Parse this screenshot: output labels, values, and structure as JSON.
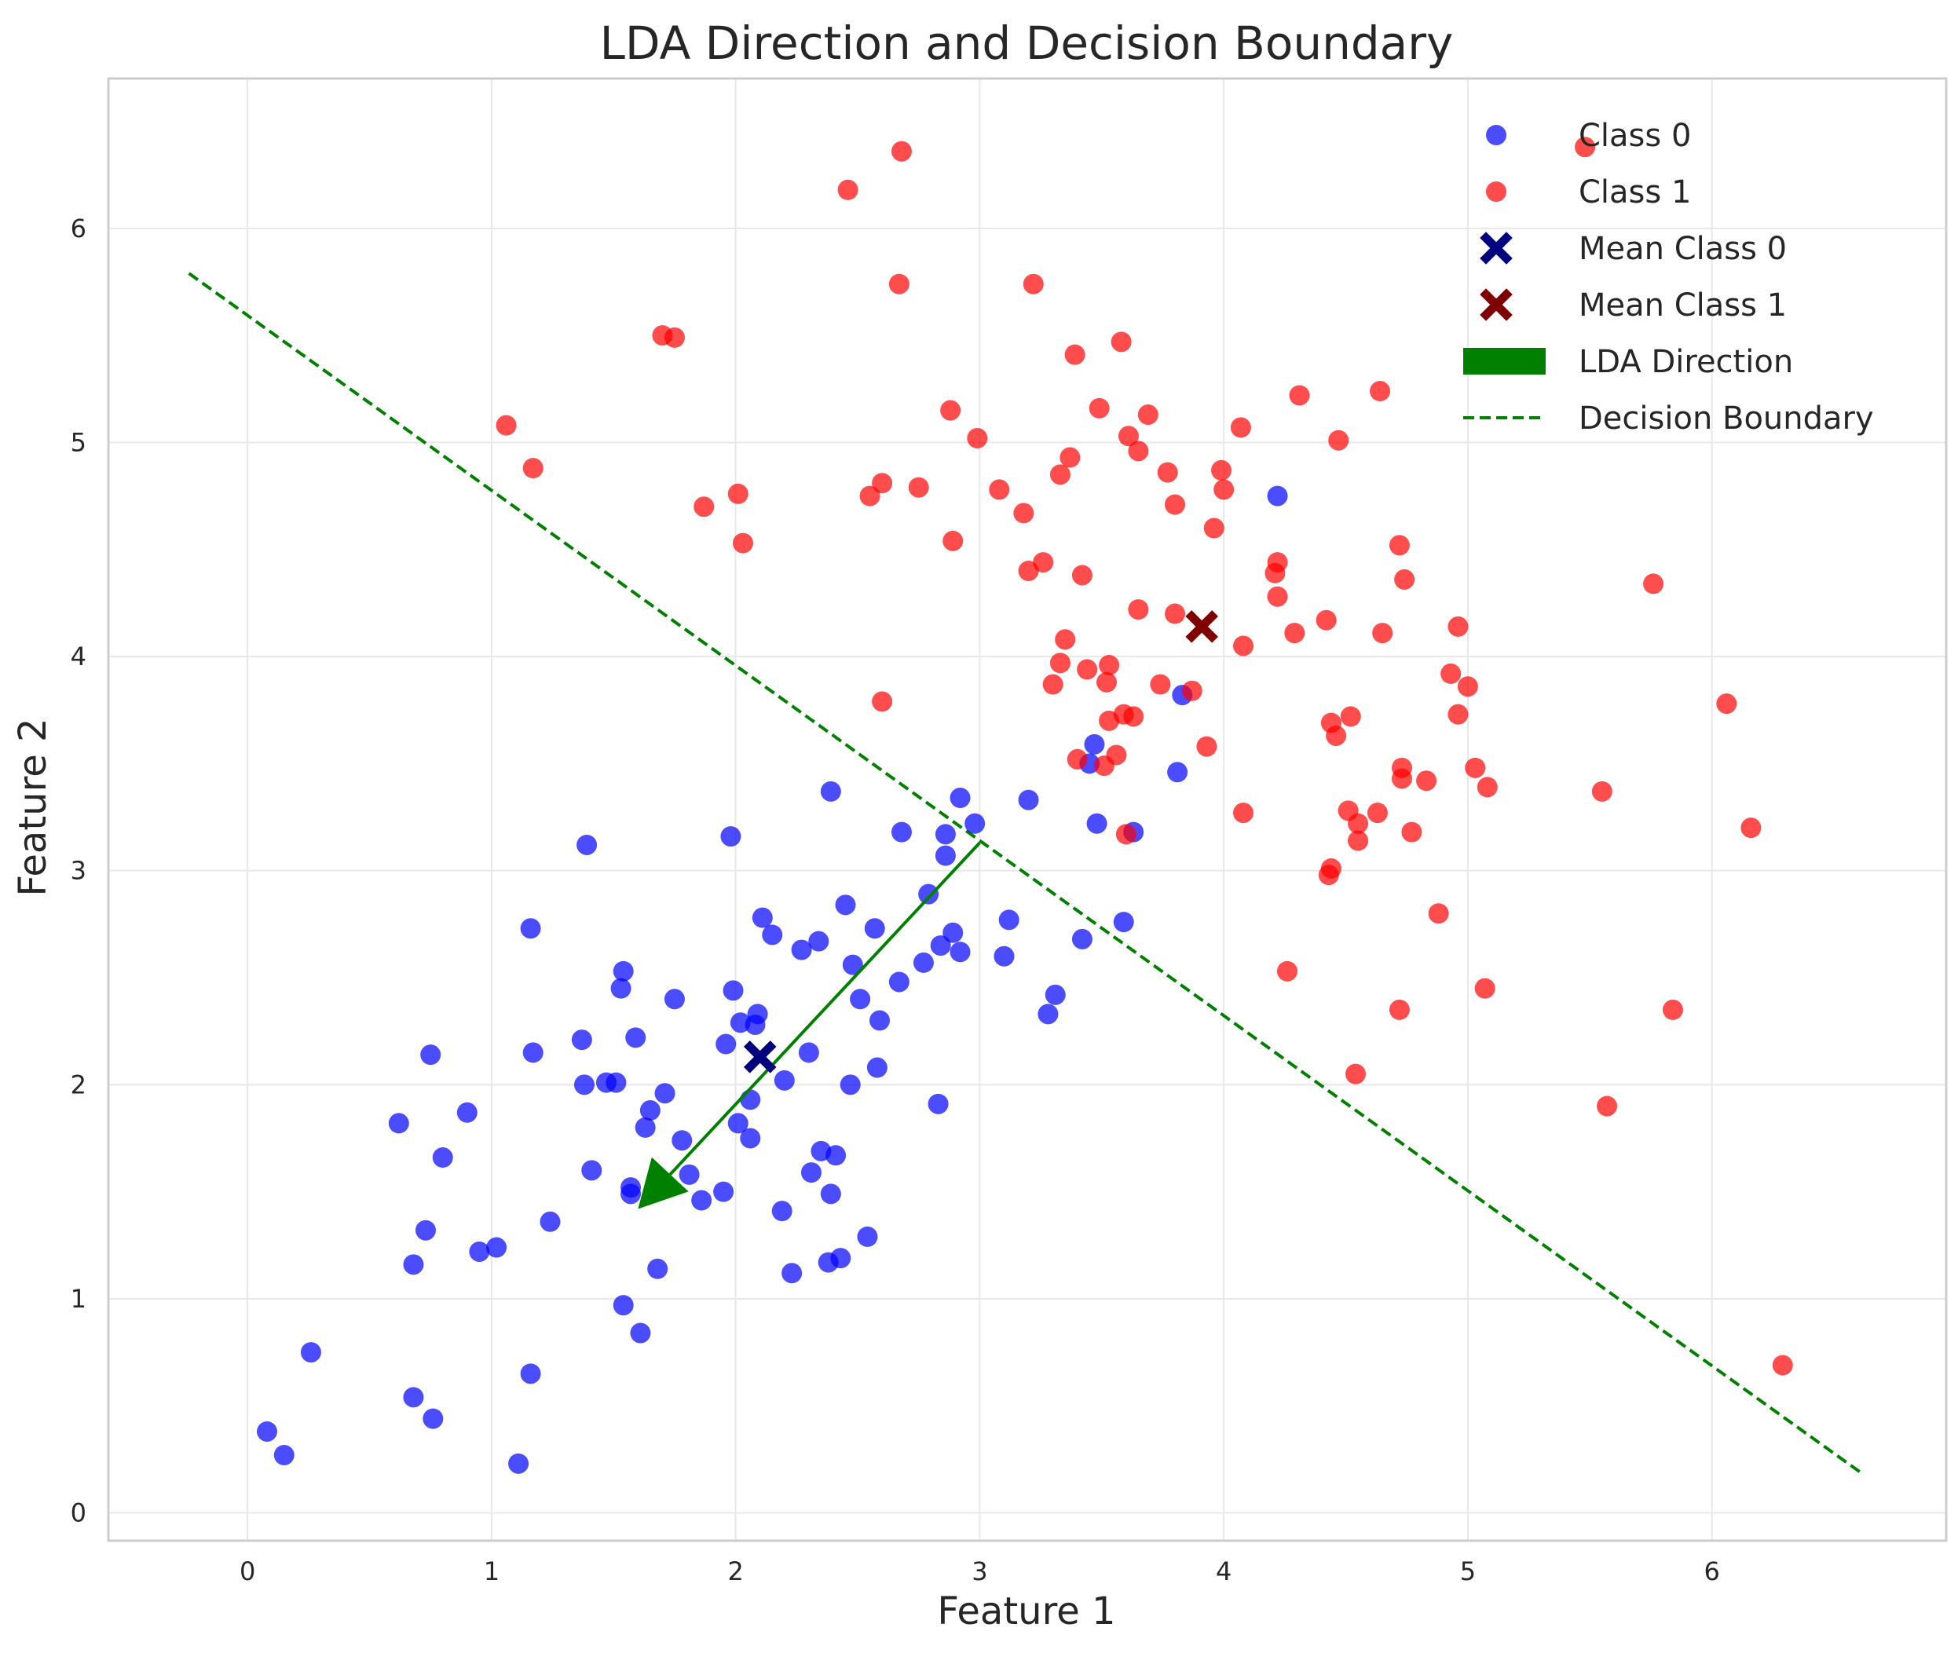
{
  "chart_data": {
    "type": "scatter",
    "title": "LDA Direction and Decision Boundary",
    "xlabel": "Feature 1",
    "ylabel": "Feature 2",
    "xlim": [
      -0.57,
      6.96
    ],
    "ylim": [
      -0.13,
      6.7
    ],
    "xticks": [
      "0",
      "1",
      "2",
      "3",
      "4",
      "5",
      "6"
    ],
    "yticks": [
      "0",
      "1",
      "2",
      "3",
      "4",
      "5",
      "6"
    ],
    "grid": true,
    "legend_position": "top-right",
    "colors": {
      "class0": "#0000ff",
      "class1": "#ff0000",
      "mean0": "#00007f",
      "mean1": "#7f0000",
      "lda": "#008000",
      "boundary": "#008000"
    },
    "series": [
      {
        "name": "Class 0",
        "kind": "scatter",
        "points": [
          [
            0.08,
            0.38
          ],
          [
            0.15,
            0.27
          ],
          [
            0.26,
            0.75
          ],
          [
            0.62,
            1.82
          ],
          [
            0.68,
            1.16
          ],
          [
            0.68,
            0.54
          ],
          [
            0.73,
            1.32
          ],
          [
            0.75,
            2.14
          ],
          [
            0.76,
            0.44
          ],
          [
            0.8,
            1.66
          ],
          [
            0.9,
            1.87
          ],
          [
            0.95,
            1.22
          ],
          [
            1.02,
            1.24
          ],
          [
            1.11,
            0.23
          ],
          [
            1.16,
            0.65
          ],
          [
            1.16,
            2.73
          ],
          [
            1.17,
            2.15
          ],
          [
            1.24,
            1.36
          ],
          [
            1.37,
            2.21
          ],
          [
            1.38,
            2.0
          ],
          [
            1.39,
            3.12
          ],
          [
            1.41,
            1.6
          ],
          [
            1.47,
            2.01
          ],
          [
            1.51,
            2.01
          ],
          [
            1.53,
            2.45
          ],
          [
            1.54,
            2.53
          ],
          [
            1.54,
            0.97
          ],
          [
            1.57,
            1.52
          ],
          [
            1.57,
            1.49
          ],
          [
            1.59,
            2.22
          ],
          [
            1.61,
            0.84
          ],
          [
            1.63,
            1.8
          ],
          [
            1.65,
            1.88
          ],
          [
            1.68,
            1.14
          ],
          [
            1.71,
            1.96
          ],
          [
            1.75,
            2.4
          ],
          [
            1.78,
            1.74
          ],
          [
            1.81,
            1.58
          ],
          [
            1.86,
            1.46
          ],
          [
            1.95,
            1.5
          ],
          [
            1.96,
            2.19
          ],
          [
            1.98,
            3.16
          ],
          [
            1.99,
            2.44
          ],
          [
            2.01,
            1.82
          ],
          [
            2.02,
            2.29
          ],
          [
            2.06,
            1.75
          ],
          [
            2.06,
            1.93
          ],
          [
            2.08,
            2.28
          ],
          [
            2.09,
            2.33
          ],
          [
            2.11,
            2.78
          ],
          [
            2.15,
            2.7
          ],
          [
            2.19,
            1.41
          ],
          [
            2.2,
            2.02
          ],
          [
            2.23,
            1.12
          ],
          [
            2.27,
            2.63
          ],
          [
            2.3,
            2.15
          ],
          [
            2.31,
            1.59
          ],
          [
            2.34,
            2.67
          ],
          [
            2.35,
            1.69
          ],
          [
            2.38,
            1.17
          ],
          [
            2.39,
            1.49
          ],
          [
            2.39,
            3.37
          ],
          [
            2.41,
            1.67
          ],
          [
            2.43,
            1.19
          ],
          [
            2.45,
            2.84
          ],
          [
            2.47,
            2.0
          ],
          [
            2.48,
            2.56
          ],
          [
            2.51,
            2.4
          ],
          [
            2.54,
            1.29
          ],
          [
            2.57,
            2.73
          ],
          [
            2.58,
            2.08
          ],
          [
            2.59,
            2.3
          ],
          [
            2.67,
            2.48
          ],
          [
            2.68,
            3.18
          ],
          [
            2.77,
            2.57
          ],
          [
            2.79,
            2.89
          ],
          [
            2.83,
            1.91
          ],
          [
            2.84,
            2.65
          ],
          [
            2.86,
            3.17
          ],
          [
            2.86,
            3.07
          ],
          [
            2.89,
            2.71
          ],
          [
            2.92,
            3.34
          ],
          [
            2.92,
            2.62
          ],
          [
            2.98,
            3.22
          ],
          [
            3.1,
            2.6
          ],
          [
            3.12,
            2.77
          ],
          [
            3.2,
            3.33
          ],
          [
            3.28,
            2.33
          ],
          [
            3.31,
            2.42
          ],
          [
            3.42,
            2.68
          ],
          [
            3.45,
            3.5
          ],
          [
            3.47,
            3.59
          ],
          [
            3.48,
            3.22
          ],
          [
            3.59,
            2.76
          ],
          [
            3.63,
            3.18
          ],
          [
            3.81,
            3.46
          ],
          [
            3.83,
            3.82
          ],
          [
            4.22,
            4.75
          ]
        ]
      },
      {
        "name": "Class 1",
        "kind": "scatter",
        "points": [
          [
            1.06,
            5.08
          ],
          [
            1.17,
            4.88
          ],
          [
            1.7,
            5.5
          ],
          [
            1.75,
            5.49
          ],
          [
            1.87,
            4.7
          ],
          [
            2.01,
            4.76
          ],
          [
            2.03,
            4.53
          ],
          [
            2.46,
            6.18
          ],
          [
            2.55,
            4.75
          ],
          [
            2.6,
            4.81
          ],
          [
            2.6,
            3.79
          ],
          [
            2.67,
            5.74
          ],
          [
            2.68,
            6.36
          ],
          [
            2.75,
            4.79
          ],
          [
            2.88,
            5.15
          ],
          [
            2.89,
            4.54
          ],
          [
            2.99,
            5.02
          ],
          [
            3.08,
            4.78
          ],
          [
            3.18,
            4.67
          ],
          [
            3.2,
            4.4
          ],
          [
            3.22,
            5.74
          ],
          [
            3.26,
            4.44
          ],
          [
            3.3,
            3.87
          ],
          [
            3.33,
            3.97
          ],
          [
            3.33,
            4.85
          ],
          [
            3.35,
            4.08
          ],
          [
            3.37,
            4.93
          ],
          [
            3.39,
            5.41
          ],
          [
            3.4,
            3.52
          ],
          [
            3.42,
            4.38
          ],
          [
            3.44,
            3.94
          ],
          [
            3.49,
            5.16
          ],
          [
            3.51,
            3.49
          ],
          [
            3.52,
            3.88
          ],
          [
            3.53,
            3.96
          ],
          [
            3.53,
            3.7
          ],
          [
            3.56,
            3.54
          ],
          [
            3.58,
            5.47
          ],
          [
            3.59,
            3.73
          ],
          [
            3.6,
            3.17
          ],
          [
            3.61,
            5.03
          ],
          [
            3.63,
            3.72
          ],
          [
            3.65,
            4.96
          ],
          [
            3.65,
            4.22
          ],
          [
            3.69,
            5.13
          ],
          [
            3.74,
            3.87
          ],
          [
            3.77,
            4.86
          ],
          [
            3.8,
            4.71
          ],
          [
            3.8,
            4.2
          ],
          [
            3.87,
            3.84
          ],
          [
            3.93,
            3.58
          ],
          [
            3.96,
            4.6
          ],
          [
            3.99,
            4.87
          ],
          [
            4.0,
            4.78
          ],
          [
            4.07,
            5.07
          ],
          [
            4.08,
            4.05
          ],
          [
            4.08,
            3.27
          ],
          [
            4.21,
            4.39
          ],
          [
            4.22,
            4.28
          ],
          [
            4.22,
            4.44
          ],
          [
            4.26,
            2.53
          ],
          [
            4.29,
            4.11
          ],
          [
            4.31,
            5.22
          ],
          [
            4.42,
            4.17
          ],
          [
            4.43,
            2.98
          ],
          [
            4.44,
            3.01
          ],
          [
            4.44,
            3.69
          ],
          [
            4.46,
            3.63
          ],
          [
            4.47,
            5.01
          ],
          [
            4.51,
            3.28
          ],
          [
            4.52,
            3.72
          ],
          [
            4.54,
            2.05
          ],
          [
            4.55,
            3.22
          ],
          [
            4.55,
            3.14
          ],
          [
            4.63,
            3.27
          ],
          [
            4.64,
            5.24
          ],
          [
            4.65,
            4.11
          ],
          [
            4.72,
            4.52
          ],
          [
            4.72,
            2.35
          ],
          [
            4.73,
            3.43
          ],
          [
            4.73,
            3.48
          ],
          [
            4.74,
            4.36
          ],
          [
            4.77,
            3.18
          ],
          [
            4.83,
            3.42
          ],
          [
            4.88,
            2.8
          ],
          [
            4.93,
            3.92
          ],
          [
            4.96,
            3.73
          ],
          [
            4.96,
            4.14
          ],
          [
            5.0,
            3.86
          ],
          [
            5.03,
            3.48
          ],
          [
            5.07,
            2.45
          ],
          [
            5.08,
            3.39
          ],
          [
            5.48,
            6.38
          ],
          [
            5.55,
            3.37
          ],
          [
            5.57,
            1.9
          ],
          [
            5.76,
            4.34
          ],
          [
            5.84,
            2.35
          ],
          [
            6.06,
            3.78
          ],
          [
            6.16,
            3.2
          ],
          [
            6.29,
            0.69
          ]
        ]
      },
      {
        "name": "Mean Class 0",
        "kind": "mean",
        "points": [
          [
            2.1,
            2.13
          ]
        ]
      },
      {
        "name": "Mean Class 1",
        "kind": "mean",
        "points": [
          [
            3.91,
            4.14
          ]
        ]
      },
      {
        "name": "LDA Direction",
        "kind": "arrow",
        "start": [
          3.0,
          3.13
        ],
        "end": [
          1.6,
          1.42
        ]
      },
      {
        "name": "Decision Boundary",
        "kind": "line",
        "start": [
          -0.24,
          5.79
        ],
        "end": [
          6.62,
          0.18
        ]
      }
    ]
  }
}
